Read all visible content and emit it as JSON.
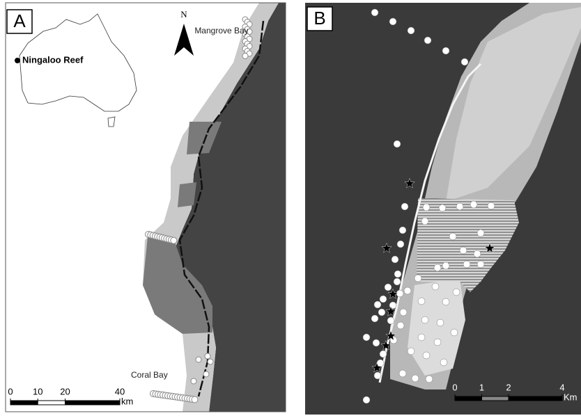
{
  "panel_a": {
    "label": "A",
    "north": "N",
    "inset_label": "Ningaloo Reef",
    "places": [
      "Mangrove Bay",
      "Coral Bay"
    ],
    "scale": {
      "ticks": [
        0,
        10,
        20,
        40
      ],
      "unit": "km"
    }
  },
  "panel_b": {
    "label": "B",
    "scale": {
      "ticks": [
        0,
        1,
        2,
        4
      ],
      "unit": "Km"
    }
  }
}
